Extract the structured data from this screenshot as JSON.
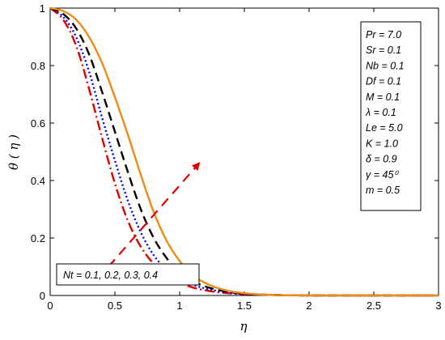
{
  "chart_data": {
    "type": "line",
    "title": "",
    "xlabel": "η",
    "ylabel": "θ ( η )",
    "xlim": [
      0,
      3
    ],
    "ylim": [
      0,
      1
    ],
    "xticks": [
      0,
      0.5,
      1,
      1.5,
      2,
      2.5,
      3
    ],
    "xtick_labels": [
      "0",
      "0.5",
      "1",
      "1.5",
      "2",
      "2.5",
      "3"
    ],
    "yticks": [
      0,
      0.2,
      0.4,
      0.6,
      0.8,
      1
    ],
    "ytick_labels": [
      "0",
      "0.2",
      "0.4",
      "0.6",
      "0.8",
      "1"
    ],
    "grid": false,
    "x": [
      0,
      0.1,
      0.2,
      0.3,
      0.4,
      0.5,
      0.6,
      0.7,
      0.8,
      0.9,
      1.0,
      1.1,
      1.2,
      1.3,
      1.4,
      1.5,
      1.6,
      1.7,
      1.8,
      1.9,
      2.0,
      2.5,
      3.0
    ],
    "series": [
      {
        "name": "Nt = 0.1",
        "color": "#e00000",
        "dash": "dashdot",
        "values": [
          1.0,
          0.96,
          0.87,
          0.72,
          0.55,
          0.39,
          0.26,
          0.17,
          0.11,
          0.07,
          0.045,
          0.028,
          0.018,
          0.011,
          0.007,
          0.004,
          0.003,
          0.002,
          0.001,
          0.0005,
          0.0,
          0.0,
          0.0
        ]
      },
      {
        "name": "Nt = 0.2",
        "color": "#0000ff",
        "dash": "dotted",
        "values": [
          1.0,
          0.97,
          0.9,
          0.78,
          0.62,
          0.47,
          0.33,
          0.22,
          0.14,
          0.09,
          0.06,
          0.038,
          0.024,
          0.015,
          0.009,
          0.005,
          0.003,
          0.002,
          0.001,
          0.0005,
          0.0,
          0.0,
          0.0
        ]
      },
      {
        "name": "Nt = 0.3",
        "color": "#000000",
        "dash": "dashed",
        "values": [
          1.0,
          0.98,
          0.93,
          0.84,
          0.71,
          0.57,
          0.43,
          0.3,
          0.2,
          0.13,
          0.08,
          0.05,
          0.031,
          0.019,
          0.011,
          0.006,
          0.004,
          0.002,
          0.001,
          0.0005,
          0.0,
          0.0,
          0.0
        ]
      },
      {
        "name": "Nt = 0.4",
        "color": "#f08a16",
        "dash": "solid",
        "values": [
          1.0,
          0.99,
          0.96,
          0.9,
          0.81,
          0.69,
          0.56,
          0.42,
          0.29,
          0.19,
          0.12,
          0.07,
          0.043,
          0.025,
          0.014,
          0.008,
          0.004,
          0.002,
          0.001,
          0.0005,
          0.0,
          0.0,
          0.0
        ]
      }
    ],
    "parameters": [
      "Pr = 7.0",
      "Sr = 0.1",
      "Nb = 0.1",
      "Df = 0.1",
      "M = 0.1",
      "λ = 0.1",
      "Le = 5.0",
      "K = 1.0",
      "δ = 0.9",
      "γ = 45⁰",
      "m = 0.5"
    ],
    "annotation": "Nt = 0.1, 0.2, 0.3, 0.4",
    "arrow": {
      "color": "#e00000",
      "from": [
        0.45,
        0.1
      ],
      "to": [
        1.15,
        0.46
      ]
    }
  }
}
